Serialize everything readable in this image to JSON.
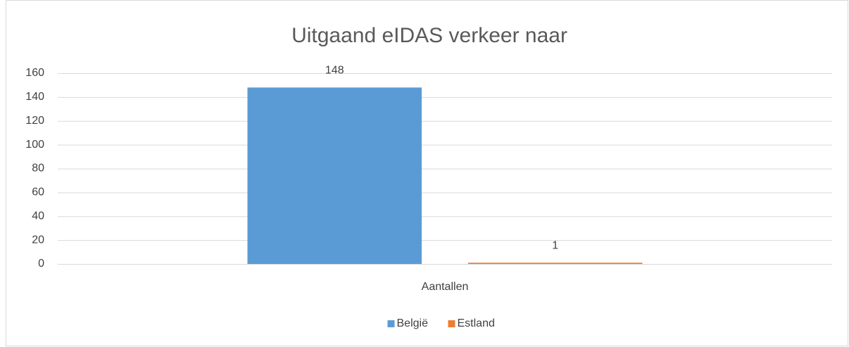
{
  "chart_data": {
    "type": "bar",
    "title": "Uitgaand eIDAS verkeer naar",
    "categories": [
      "Aantallen"
    ],
    "series": [
      {
        "name": "België",
        "color": "#5b9bd5",
        "values": [
          148
        ]
      },
      {
        "name": "Estland",
        "color": "#ed7d31",
        "values": [
          1
        ]
      }
    ],
    "ylim": [
      0,
      160
    ],
    "yticks": [
      0,
      20,
      40,
      60,
      80,
      100,
      120,
      140,
      160
    ],
    "grid": true,
    "legend": "bottom",
    "data_labels": true
  }
}
